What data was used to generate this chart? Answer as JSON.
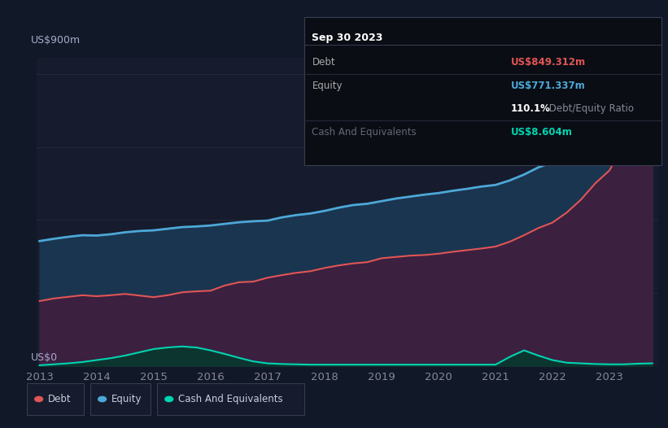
{
  "bg_color": "#111827",
  "plot_bg_color": "#161c2d",
  "grid_color": "#252d40",
  "title_box_bg": "#0a0d14",
  "title_box_border": "#3a3f52",
  "y_label_top": "US$900m",
  "y_label_bottom": "US$0",
  "x_ticks": [
    "2013",
    "2014",
    "2015",
    "2016",
    "2017",
    "2018",
    "2019",
    "2020",
    "2021",
    "2022",
    "2023"
  ],
  "debt_color": "#e05555",
  "equity_color": "#4da8d8",
  "cash_color": "#00d4b0",
  "equity_fill_color": "#1a3550",
  "debt_below_equity_fill": "#3b2040",
  "cash_fill_color": "#0d3530",
  "legend_bg": "#161c2d",
  "legend_border": "#3a3f52",
  "title_box": {
    "date": "Sep 30 2023",
    "debt_label": "Debt",
    "debt_value": "US$849.312m",
    "debt_color": "#e05555",
    "equity_label": "Equity",
    "equity_value": "US$771.337m",
    "equity_color": "#4da8d8",
    "ratio_bold": "110.1%",
    "ratio_text": " Debt/Equity Ratio",
    "cash_label": "Cash And Equivalents",
    "cash_value": "US$8.604m",
    "cash_color": "#00d4b0"
  },
  "years": [
    2013.0,
    2013.25,
    2013.5,
    2013.75,
    2014.0,
    2014.25,
    2014.5,
    2014.75,
    2015.0,
    2015.25,
    2015.5,
    2015.75,
    2016.0,
    2016.25,
    2016.5,
    2016.75,
    2017.0,
    2017.25,
    2017.5,
    2017.75,
    2018.0,
    2018.25,
    2018.5,
    2018.75,
    2019.0,
    2019.25,
    2019.5,
    2019.75,
    2020.0,
    2020.25,
    2020.5,
    2020.75,
    2021.0,
    2021.25,
    2021.5,
    2021.75,
    2022.0,
    2022.25,
    2022.5,
    2022.75,
    2023.0,
    2023.25,
    2023.5,
    2023.75
  ],
  "debt": [
    200,
    208,
    213,
    218,
    215,
    218,
    222,
    217,
    212,
    218,
    227,
    230,
    232,
    248,
    258,
    260,
    272,
    280,
    287,
    292,
    302,
    310,
    316,
    320,
    332,
    336,
    340,
    342,
    346,
    352,
    357,
    362,
    368,
    383,
    403,
    425,
    442,
    473,
    513,
    563,
    603,
    683,
    783,
    849
  ],
  "equity": [
    385,
    392,
    398,
    403,
    402,
    406,
    412,
    416,
    418,
    423,
    428,
    430,
    433,
    438,
    443,
    446,
    448,
    458,
    465,
    470,
    478,
    488,
    496,
    500,
    508,
    516,
    522,
    528,
    533,
    540,
    546,
    553,
    558,
    572,
    590,
    612,
    628,
    652,
    682,
    712,
    732,
    752,
    768,
    771
  ],
  "cash": [
    2,
    5,
    8,
    12,
    18,
    24,
    32,
    42,
    52,
    57,
    60,
    57,
    48,
    37,
    25,
    14,
    8,
    6,
    5,
    4,
    4,
    4,
    4,
    4,
    4,
    4,
    4,
    4,
    4,
    4,
    4,
    4,
    4,
    28,
    48,
    32,
    18,
    10,
    8,
    6,
    5,
    5,
    7,
    8
  ]
}
